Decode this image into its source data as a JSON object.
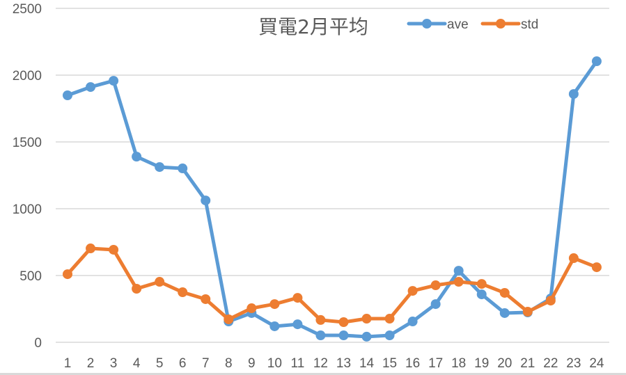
{
  "chart_data": {
    "type": "line",
    "title": "買電2月平均",
    "xlabel": "",
    "ylabel": "",
    "categories": [
      "1",
      "2",
      "3",
      "4",
      "5",
      "6",
      "7",
      "8",
      "9",
      "10",
      "11",
      "12",
      "13",
      "14",
      "15",
      "16",
      "17",
      "18",
      "19",
      "20",
      "21",
      "22",
      "23",
      "24"
    ],
    "series": [
      {
        "name": "ave",
        "color": "#5B9BD5",
        "values": [
          1849,
          1911,
          1958,
          1390,
          1312,
          1302,
          1062,
          156,
          219,
          120,
          135,
          52,
          52,
          42,
          52,
          156,
          286,
          536,
          359,
          219,
          224,
          328,
          1859,
          2104
        ]
      },
      {
        "name": "std",
        "color": "#ED7D31",
        "values": [
          510,
          703,
          693,
          401,
          453,
          375,
          323,
          172,
          255,
          286,
          333,
          167,
          151,
          177,
          177,
          385,
          427,
          453,
          437,
          370,
          229,
          312,
          630,
          562
        ]
      }
    ],
    "ylim": [
      0,
      2500
    ],
    "yticks": [
      0,
      500,
      1000,
      1500,
      2000,
      2500
    ],
    "grid": true,
    "legend_position": "top-right"
  },
  "colors": {
    "grid": "#d9d9d9",
    "text": "#595959"
  }
}
